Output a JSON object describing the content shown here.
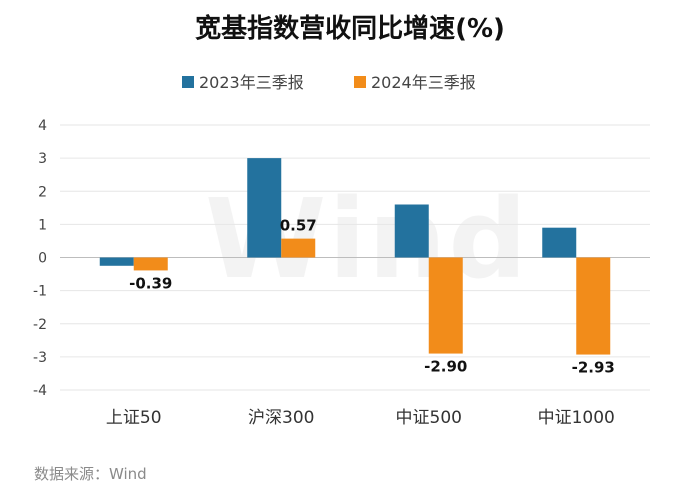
{
  "title": "宽基指数营收同比增速(%)",
  "source": "数据来源：Wind",
  "watermark": "Wind",
  "chart_data": {
    "type": "bar",
    "categories": [
      "上证50",
      "沪深300",
      "中证500",
      "中证1000"
    ],
    "series": [
      {
        "name": "2023年三季报",
        "color": "#23729e",
        "values": [
          -0.25,
          3.0,
          1.6,
          0.9
        ]
      },
      {
        "name": "2024年三季报",
        "color": "#f28c1a",
        "values": [
          -0.39,
          0.57,
          -2.9,
          -2.93
        ]
      }
    ],
    "data_labels": {
      "series_index": 1,
      "labels": [
        "-0.39",
        "0.57",
        "-2.90",
        "-2.93"
      ]
    },
    "ylim": [
      -4,
      4
    ],
    "yticks": [
      "4",
      "3",
      "2",
      "1",
      "0",
      "-1",
      "-2",
      "-3",
      "-4"
    ],
    "ytick_values": [
      4,
      3,
      2,
      1,
      0,
      -1,
      -2,
      -3,
      -4
    ],
    "grid": true,
    "legend": "top-center"
  }
}
